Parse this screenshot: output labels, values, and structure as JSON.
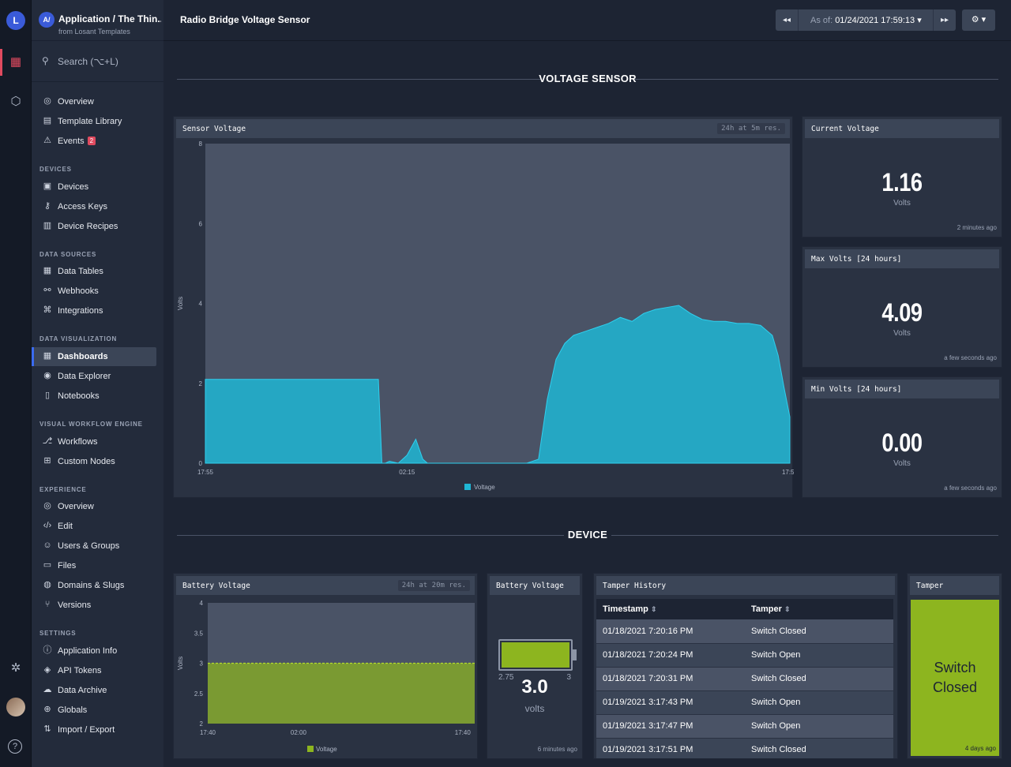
{
  "app": {
    "badge": "A/",
    "title": "Application / The Thin...",
    "subtitle": "from Losant Templates",
    "logo": "L"
  },
  "search": {
    "placeholder": "Search (⌥+L)"
  },
  "nav": {
    "top": [
      {
        "label": "Overview",
        "icon": "overview-icon"
      },
      {
        "label": "Template Library",
        "icon": "template-library-icon"
      },
      {
        "label": "Events",
        "icon": "warning-icon",
        "badge": "2"
      }
    ],
    "sections": [
      {
        "title": "DEVICES",
        "items": [
          {
            "label": "Devices",
            "icon": "chip-icon"
          },
          {
            "label": "Access Keys",
            "icon": "key-icon"
          },
          {
            "label": "Device Recipes",
            "icon": "recipe-icon"
          }
        ]
      },
      {
        "title": "DATA SOURCES",
        "items": [
          {
            "label": "Data Tables",
            "icon": "table-icon"
          },
          {
            "label": "Webhooks",
            "icon": "webhook-icon"
          },
          {
            "label": "Integrations",
            "icon": "integrations-icon"
          }
        ]
      },
      {
        "title": "DATA VISUALIZATION",
        "items": [
          {
            "label": "Dashboards",
            "icon": "dashboard-icon",
            "selected": true
          },
          {
            "label": "Data Explorer",
            "icon": "compass-icon"
          },
          {
            "label": "Notebooks",
            "icon": "notebook-icon"
          }
        ]
      },
      {
        "title": "VISUAL WORKFLOW ENGINE",
        "items": [
          {
            "label": "Workflows",
            "icon": "workflow-icon"
          },
          {
            "label": "Custom Nodes",
            "icon": "custom-node-icon"
          }
        ]
      },
      {
        "title": "EXPERIENCE",
        "items": [
          {
            "label": "Overview",
            "icon": "overview-icon"
          },
          {
            "label": "Edit",
            "icon": "code-icon"
          },
          {
            "label": "Users & Groups",
            "icon": "users-icon"
          },
          {
            "label": "Files",
            "icon": "folder-icon"
          },
          {
            "label": "Domains & Slugs",
            "icon": "domain-icon"
          },
          {
            "label": "Versions",
            "icon": "branch-icon"
          }
        ]
      },
      {
        "title": "SETTINGS",
        "items": [
          {
            "label": "Application Info",
            "icon": "info-icon"
          },
          {
            "label": "API Tokens",
            "icon": "token-icon"
          },
          {
            "label": "Data Archive",
            "icon": "archive-icon"
          },
          {
            "label": "Globals",
            "icon": "globe-icon"
          },
          {
            "label": "Import / Export",
            "icon": "import-export-icon"
          }
        ]
      }
    ]
  },
  "header": {
    "title": "Radio Bridge Voltage Sensor",
    "asof_label": "As of:",
    "asof_value": "01/24/2021 17:59:13",
    "prev": "◂◂",
    "next": "▸▸",
    "gear": "⚙ ▾"
  },
  "sections": {
    "voltage": "VOLTAGE SENSOR",
    "device": "DEVICE"
  },
  "sensor_chart": {
    "title": "Sensor Voltage",
    "resolution": "24h at 5m res.",
    "chart_data": {
      "type": "area",
      "ylabel": "Volts",
      "ylim": [
        0,
        8
      ],
      "yticks": [
        "0",
        "2",
        "4",
        "6",
        "8"
      ],
      "xticks": [
        "17:55",
        "02:15",
        "17:55"
      ],
      "legend": "Voltage",
      "color": "#1fb6d4",
      "x": [
        0,
        0.29,
        0.296,
        0.302,
        0.308,
        0.315,
        0.33,
        0.345,
        0.36,
        0.372,
        0.38,
        0.39,
        0.55,
        0.57,
        0.585,
        0.6,
        0.615,
        0.63,
        0.65,
        0.67,
        0.69,
        0.71,
        0.73,
        0.75,
        0.77,
        0.79,
        0.81,
        0.83,
        0.85,
        0.87,
        0.89,
        0.91,
        0.93,
        0.95,
        0.97,
        0.98,
        0.99,
        1.0
      ],
      "values": [
        2.1,
        2.1,
        2.1,
        0,
        0,
        0.05,
        0,
        0.2,
        0.6,
        0.1,
        0,
        0,
        0,
        0.1,
        1.6,
        2.6,
        3.0,
        3.2,
        3.3,
        3.4,
        3.5,
        3.65,
        3.55,
        3.75,
        3.85,
        3.9,
        3.95,
        3.75,
        3.6,
        3.55,
        3.55,
        3.5,
        3.5,
        3.45,
        3.2,
        2.7,
        1.9,
        1.16
      ]
    }
  },
  "stats": [
    {
      "title": "Current Voltage",
      "value": "1.16",
      "unit": "Volts",
      "ago": "2 minutes ago"
    },
    {
      "title": "Max Volts [24 hours]",
      "value": "4.09",
      "unit": "Volts",
      "ago": "a few seconds ago"
    },
    {
      "title": "Min Volts [24 hours]",
      "value": "0.00",
      "unit": "Volts",
      "ago": "a few seconds ago"
    }
  ],
  "battery_chart": {
    "title": "Battery Voltage",
    "resolution": "24h at 20m res.",
    "chart_data": {
      "type": "area",
      "ylabel": "Volts",
      "ylim": [
        2,
        4
      ],
      "yticks": [
        "2",
        "2.5",
        "3",
        "3.5",
        "4"
      ],
      "xticks": [
        "17:40",
        "02:00",
        "17:40"
      ],
      "legend": "Voltage",
      "color": "#8db51f",
      "value": 3.0
    }
  },
  "battery_gauge": {
    "title": "Battery Voltage",
    "min": "2.75",
    "max": "3",
    "value": "3.0",
    "unit": "volts",
    "level": 1.0,
    "ago": "6 minutes ago"
  },
  "tamper_history": {
    "title": "Tamper History",
    "headers": [
      "Timestamp",
      "Tamper"
    ],
    "rows": [
      [
        "01/18/2021 7:20:16 PM",
        "Switch Closed"
      ],
      [
        "01/18/2021 7:20:24 PM",
        "Switch Open"
      ],
      [
        "01/18/2021 7:20:31 PM",
        "Switch Closed"
      ],
      [
        "01/19/2021 3:17:43 PM",
        "Switch Open"
      ],
      [
        "01/19/2021 3:17:47 PM",
        "Switch Open"
      ],
      [
        "01/19/2021 3:17:51 PM",
        "Switch Closed"
      ]
    ]
  },
  "tamper": {
    "title": "Tamper",
    "state": "Switch Closed",
    "ago": "4 days ago",
    "color": "#8db51f"
  }
}
